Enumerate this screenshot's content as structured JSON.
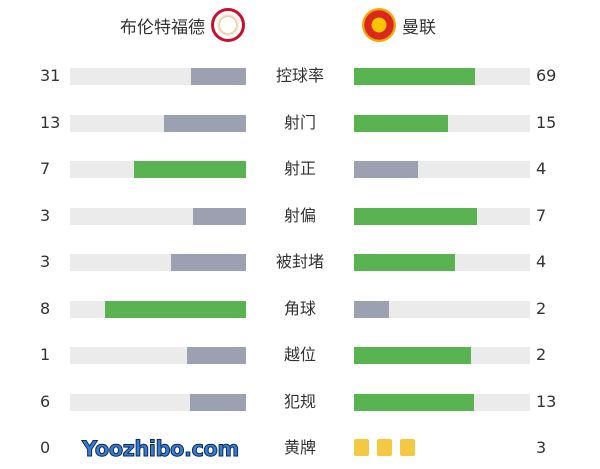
{
  "home": {
    "name": "布伦特福德",
    "logo": "brentford-crest"
  },
  "away": {
    "name": "曼联",
    "logo": "man-utd-crest"
  },
  "colors": {
    "win": "#58b350",
    "lose": "#9ba1b1",
    "track": "#ebebeb",
    "card": "#f4c842"
  },
  "stats": [
    {
      "label": "控球率",
      "home": 31,
      "away": 69
    },
    {
      "label": "射门",
      "home": 13,
      "away": 15
    },
    {
      "label": "射正",
      "home": 7,
      "away": 4
    },
    {
      "label": "射偏",
      "home": 3,
      "away": 7
    },
    {
      "label": "被封堵",
      "home": 3,
      "away": 4
    },
    {
      "label": "角球",
      "home": 8,
      "away": 2
    },
    {
      "label": "越位",
      "home": 1,
      "away": 2
    },
    {
      "label": "犯规",
      "home": 6,
      "away": 13
    }
  ],
  "yellow": {
    "label": "黄牌",
    "home": 0,
    "away": 3
  },
  "watermark": "Yoozhibo.com"
}
